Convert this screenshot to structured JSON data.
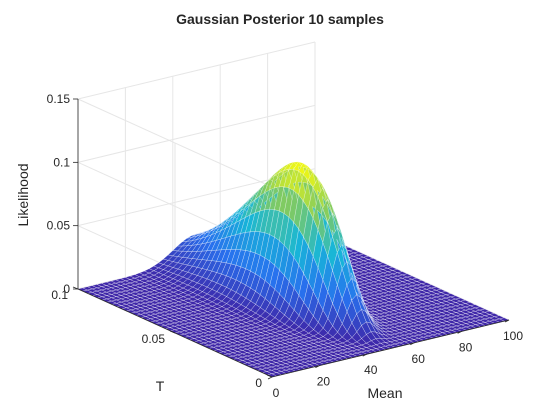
{
  "chart_data": {
    "type": "surface",
    "title": "Gaussian Posterior 10 samples",
    "xlabel": "Mean",
    "ylabel": "T",
    "zlabel": "Likelihood",
    "xlim": [
      0,
      100
    ],
    "ylim": [
      0,
      0.1
    ],
    "zlim": [
      0,
      0.15
    ],
    "xticks": [
      "0",
      "20",
      "40",
      "60",
      "80",
      "100"
    ],
    "yticks": [
      "0",
      "0.05",
      "0.1"
    ],
    "zticks": [
      "0",
      "0.05",
      "0.1",
      "0.15"
    ],
    "peak": {
      "mean": 50,
      "T": 0.045,
      "likelihood": 0.115
    },
    "grid": true,
    "colormap": "parula",
    "colors": {
      "low": "#3e26a8",
      "mid": "#17b6d8",
      "high": "#f9fb0e",
      "axis": "#262626",
      "grid": "#e6e6e6",
      "mesh_edge": "#ffffff"
    }
  }
}
